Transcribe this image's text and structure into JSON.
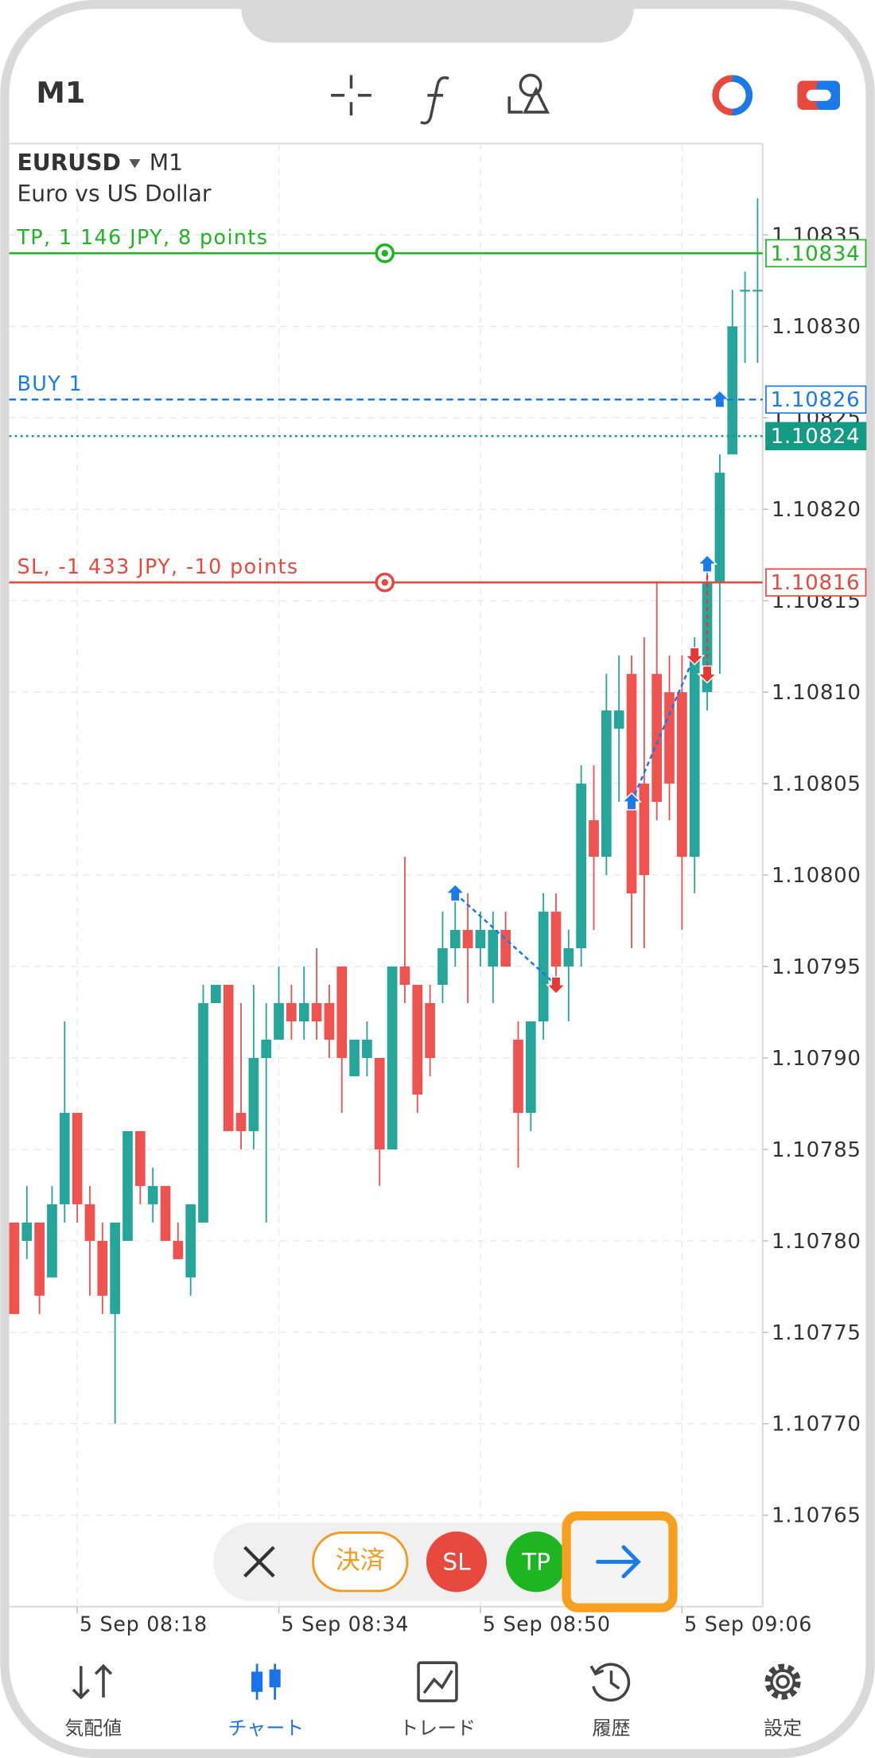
{
  "top_bar": {
    "timeframe": "M1"
  },
  "chart_data": {
    "type": "candlestick",
    "symbol": "EURUSD",
    "timeframe": "M1",
    "description": "Euro vs US Dollar",
    "open": [
      1.10781,
      1.1078,
      1.10781,
      1.10778,
      1.10782,
      1.10787,
      1.10782,
      1.1078,
      1.10776,
      1.1078,
      1.10786,
      1.10782,
      1.10783,
      1.1078,
      1.10778,
      1.10781,
      1.10793,
      1.10794,
      1.10787,
      1.10786,
      1.1079,
      1.10791,
      1.10793,
      1.10792,
      1.10793,
      1.10793,
      1.10795,
      1.10789,
      1.1079,
      1.1079,
      1.10785,
      1.10795,
      1.10794,
      1.10793,
      1.10794,
      1.10796,
      1.10797,
      1.10796,
      1.10795,
      1.10797,
      1.10791,
      1.10787,
      1.10792,
      1.10798,
      1.10795,
      1.10796,
      1.10803,
      1.10801,
      1.10808,
      1.10811,
      1.10805,
      1.10811,
      1.1081,
      1.1081,
      1.10801,
      1.1081,
      1.10816,
      1.10823,
      1.10832,
      1.10832
    ],
    "high": [
      1.10781,
      1.10783,
      1.10781,
      1.10783,
      1.10792,
      1.10787,
      1.10783,
      1.10781,
      1.10781,
      1.10786,
      1.10786,
      1.10784,
      1.10783,
      1.10781,
      1.10782,
      1.10794,
      1.10794,
      1.10794,
      1.10793,
      1.10794,
      1.10793,
      1.10795,
      1.10794,
      1.10795,
      1.10796,
      1.10794,
      1.10795,
      1.10791,
      1.10792,
      1.1079,
      1.10795,
      1.10801,
      1.10794,
      1.10794,
      1.10798,
      1.10799,
      1.10799,
      1.10798,
      1.10798,
      1.10798,
      1.10792,
      1.10792,
      1.10799,
      1.10799,
      1.10797,
      1.10806,
      1.10806,
      1.10811,
      1.10812,
      1.10812,
      1.10813,
      1.10816,
      1.10812,
      1.10812,
      1.10813,
      1.10817,
      1.10823,
      1.10832,
      1.10833,
      1.10837
    ],
    "low": [
      1.10776,
      1.10779,
      1.10776,
      1.10778,
      1.10781,
      1.10781,
      1.10777,
      1.10776,
      1.1077,
      1.1078,
      1.10782,
      1.10781,
      1.1078,
      1.10779,
      1.10777,
      1.10781,
      1.10793,
      1.10786,
      1.10785,
      1.10785,
      1.10781,
      1.10791,
      1.10791,
      1.10791,
      1.10791,
      1.1079,
      1.10787,
      1.10789,
      1.10789,
      1.10783,
      1.10785,
      1.10793,
      1.10787,
      1.10789,
      1.10793,
      1.10795,
      1.10793,
      1.10795,
      1.10793,
      1.10795,
      1.10784,
      1.10786,
      1.10791,
      1.10794,
      1.10792,
      1.10795,
      1.10797,
      1.108,
      1.10804,
      1.10796,
      1.10796,
      1.10803,
      1.10803,
      1.10797,
      1.10799,
      1.10809,
      1.10811,
      1.10823,
      1.10828,
      1.10828
    ],
    "close": [
      1.10776,
      1.10781,
      1.10777,
      1.10782,
      1.10787,
      1.10782,
      1.1078,
      1.10777,
      1.10781,
      1.10786,
      1.10783,
      1.10783,
      1.1078,
      1.10779,
      1.10782,
      1.10793,
      1.10794,
      1.10786,
      1.10786,
      1.1079,
      1.10791,
      1.10793,
      1.10792,
      1.10793,
      1.10792,
      1.10791,
      1.1079,
      1.10791,
      1.10791,
      1.10785,
      1.10795,
      1.10794,
      1.10788,
      1.1079,
      1.10796,
      1.10797,
      1.10796,
      1.10797,
      1.10797,
      1.10795,
      1.10787,
      1.10792,
      1.10798,
      1.10795,
      1.10796,
      1.10805,
      1.10801,
      1.10809,
      1.10809,
      1.10799,
      1.108,
      1.10804,
      1.10805,
      1.10801,
      1.10812,
      1.10816,
      1.10822,
      1.1083,
      1.10832,
      1.10832
    ],
    "up_color": "#26a69a",
    "down_color": "#ef5350",
    "xlim": [
      -0.4,
      59.4
    ],
    "xticks": [
      {
        "value": 5,
        "label": "5 Sep 08:18"
      },
      {
        "value": 21,
        "label": "5 Sep 08:34"
      },
      {
        "value": 37,
        "label": "5 Sep 08:50"
      },
      {
        "value": 53,
        "label": "5 Sep 09:06"
      }
    ],
    "ylim": [
      1.1076,
      1.1084
    ],
    "yticks": [
      1.10835,
      {
        "value": 1.1083,
        "label": "1.10830"
      },
      1.10825,
      {
        "value": 1.1082,
        "label": "1.10820"
      },
      1.10815,
      {
        "value": 1.1081,
        "label": "1.10810"
      },
      1.10805,
      {
        "value": 1.108,
        "label": "1.10800"
      },
      1.10795,
      {
        "value": 1.1079,
        "label": "1.10790"
      },
      1.10785,
      {
        "value": 1.1078,
        "label": "1.10780"
      },
      1.10775,
      {
        "value": 1.1077,
        "label": "1.10770"
      },
      1.10765
    ],
    "grid": true,
    "levels": [
      {
        "label": "TP, 1 146 JPY, 8 points",
        "value": 1.10834,
        "color": "#1db521",
        "style": "solid",
        "handle": true
      },
      {
        "label": "BUY 1",
        "value": 1.10826,
        "color": "#1a7be8",
        "style": "dashed"
      },
      {
        "value": 1.10824,
        "color": "#159a84",
        "style": "dotted",
        "filled": true
      },
      {
        "label": "SL, -1 433 JPY, -10 points",
        "value": 1.10816,
        "color": "#e8493f",
        "style": "solid",
        "handle": true
      }
    ],
    "buy_color": "#1a7be8",
    "sell_color": "#e53935",
    "deals": [
      {
        "side": "buy",
        "index": 35,
        "price": 1.10799
      },
      {
        "side": "sell",
        "index": 43,
        "price": 1.10794
      },
      {
        "side": "buy",
        "index": 49,
        "price": 1.10804
      },
      {
        "side": "sell",
        "index": 54,
        "price": 1.10812
      },
      {
        "side": "sell",
        "index": 55,
        "price": 1.10811
      },
      {
        "side": "buy",
        "index": 55,
        "price": 1.10817
      },
      {
        "side": "buy",
        "index": 56,
        "price": 1.10826
      }
    ]
  },
  "toolbar": {
    "close": "決済",
    "sl": "SL",
    "tp": "TP"
  },
  "nav": {
    "items": [
      "気配値",
      "チャート",
      "トレード",
      "履歴",
      "設定"
    ],
    "active": 1
  }
}
